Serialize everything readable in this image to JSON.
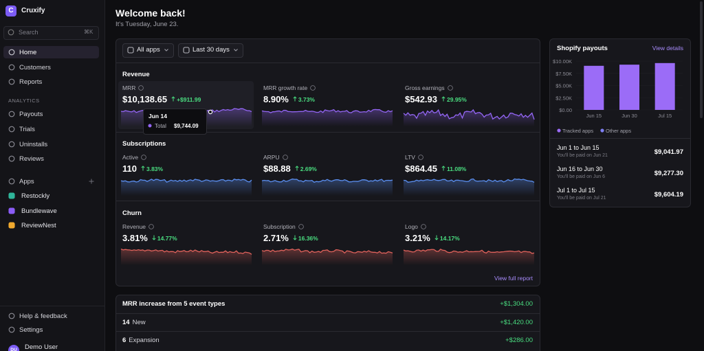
{
  "sidebar": {
    "logo": "C",
    "brand": "Cruxify",
    "search": {
      "placeholder": "Search",
      "shortcut": "⌘K"
    },
    "nav": [
      "Home",
      "Customers",
      "Reports"
    ],
    "analytics_heading": "ANALYTICS",
    "analytics": [
      "Payouts",
      "Trials",
      "Uninstalls",
      "Reviews"
    ],
    "apps_heading": "Apps",
    "apps": [
      "Restockly",
      "Bundlewave",
      "ReviewNest"
    ],
    "footer": [
      "Help & feedback",
      "Settings"
    ],
    "user": {
      "initials": "DU",
      "name": "Demo User"
    }
  },
  "header": {
    "title": "Welcome back!",
    "subtitle": "It's Tuesday, June 23."
  },
  "filters": [
    "All apps",
    "Last 30 days"
  ],
  "sections": [
    {
      "title": "Revenue",
      "metrics": [
        {
          "label": "MRR",
          "value": "$10,138.65",
          "change": "+$911.99",
          "trend": "up"
        },
        {
          "label": "MRR growth rate",
          "value": "8.90%",
          "change": "3.73%",
          "trend": "up"
        },
        {
          "label": "Gross earnings",
          "value": "$542.93",
          "change": "29.95%",
          "trend": "up"
        }
      ]
    },
    {
      "title": "Subscriptions",
      "metrics": [
        {
          "label": "Active",
          "value": "110",
          "change": "3.83%",
          "trend": "up"
        },
        {
          "label": "ARPU",
          "value": "$88.88",
          "change": "2.69%",
          "trend": "up"
        },
        {
          "label": "LTV",
          "value": "$864.45",
          "change": "11.08%",
          "trend": "up"
        }
      ]
    },
    {
      "title": "Churn",
      "metrics": [
        {
          "label": "Revenue",
          "value": "3.81%",
          "change": "14.77%",
          "trend": "down"
        },
        {
          "label": "Subscription",
          "value": "2.71%",
          "change": "16.36%",
          "trend": "down"
        },
        {
          "label": "Logo",
          "value": "3.21%",
          "change": "14.17%",
          "trend": "down"
        }
      ]
    }
  ],
  "tooltip": {
    "date": "Jun 14",
    "label": "Total",
    "value": "$9,744.09"
  },
  "view_report": "View full report",
  "events": {
    "title": "MRR increase from 5 event types",
    "total": "+$1,304.00",
    "rows": [
      [
        "14",
        "New",
        "+$1,420.00"
      ],
      [
        "6",
        "Expansion",
        "+$286.00"
      ]
    ]
  },
  "payouts": {
    "title": "Shopify payouts",
    "link": "View details",
    "list": [
      {
        "range": "Jun 1 to Jun 15",
        "note": "You'll be paid on Jun 21",
        "amount": "$9,041.97"
      },
      {
        "range": "Jun 16 to Jun 30",
        "note": "You'll be paid on Jun 6",
        "amount": "$9,277.30"
      },
      {
        "range": "Jul 1 to Jul 15",
        "note": "You'll be paid on Jul 21",
        "amount": "$9,604.19"
      }
    ]
  },
  "chart_data": {
    "type": "bar",
    "categories": [
      "Jun 15",
      "Jun 30",
      "Jul 15"
    ],
    "series": [
      {
        "name": "Tracked apps",
        "color": "#9b6cf7",
        "values": [
          9041.97,
          9277.3,
          9604.19
        ]
      },
      {
        "name": "Other apps",
        "color": "#7d7ff2",
        "values": [
          0,
          0,
          0
        ]
      }
    ],
    "stacked": true,
    "ylim": [
      0,
      10000
    ],
    "yticks": [
      {
        "value": 10000,
        "label": "$10.00K"
      },
      {
        "value": 7500,
        "label": "$7.50K"
      },
      {
        "value": 5000,
        "label": "$5.00K"
      },
      {
        "value": 2500,
        "label": "$2.50K"
      },
      {
        "value": 0,
        "label": "$0.00"
      }
    ]
  }
}
